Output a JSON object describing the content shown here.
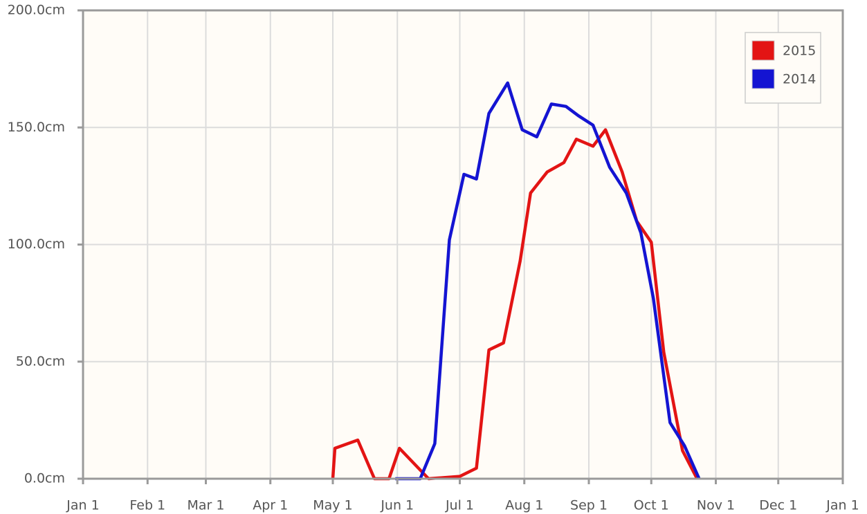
{
  "chart_data": {
    "type": "line",
    "xlim": [
      0,
      365
    ],
    "xticks": [
      {
        "value": 0,
        "label": "Jan 1"
      },
      {
        "value": 31,
        "label": "Feb 1"
      },
      {
        "value": 59,
        "label": "Mar 1"
      },
      {
        "value": 90,
        "label": "Apr 1"
      },
      {
        "value": 120,
        "label": "May 1"
      },
      {
        "value": 151,
        "label": "Jun 1"
      },
      {
        "value": 181,
        "label": "Jul 1"
      },
      {
        "value": 212,
        "label": "Aug 1"
      },
      {
        "value": 243,
        "label": "Sep 1"
      },
      {
        "value": 273,
        "label": "Oct 1"
      },
      {
        "value": 304,
        "label": "Nov 1"
      },
      {
        "value": 334,
        "label": "Dec 1"
      },
      {
        "value": 365,
        "label": "Jan 1"
      }
    ],
    "ylim": [
      0,
      200
    ],
    "yticks": [
      {
        "value": 0,
        "label": "0.0cm"
      },
      {
        "value": 50,
        "label": "50.0cm"
      },
      {
        "value": 100,
        "label": "100.0cm"
      },
      {
        "value": 150,
        "label": "150.0cm"
      },
      {
        "value": 200,
        "label": "200.0cm"
      }
    ],
    "grid": true,
    "legend": "top-right",
    "series": [
      {
        "name": "2015",
        "color": "#e31414",
        "x": [
          120,
          121,
          132,
          140,
          147,
          152,
          166,
          181,
          189,
          195,
          202,
          210,
          215,
          223,
          231,
          237,
          245,
          251,
          259,
          266,
          273,
          279,
          288,
          295
        ],
        "values": [
          0,
          13,
          16.5,
          0,
          0,
          13,
          0,
          1,
          4.5,
          55,
          58,
          93,
          122,
          131,
          135,
          145,
          142,
          149,
          131,
          110,
          101,
          54,
          12,
          0
        ]
      },
      {
        "name": "2014",
        "color": "#1414d2",
        "x": [
          150,
          162,
          169,
          176,
          183,
          189,
          195,
          204,
          211,
          218,
          225,
          232,
          238,
          245,
          253,
          261,
          268,
          274,
          282,
          289,
          296
        ],
        "values": [
          0,
          0,
          15,
          102,
          130,
          128,
          156,
          169,
          149,
          146,
          160,
          159,
          155,
          151,
          133,
          122,
          105,
          77,
          24,
          14,
          0
        ]
      }
    ]
  }
}
